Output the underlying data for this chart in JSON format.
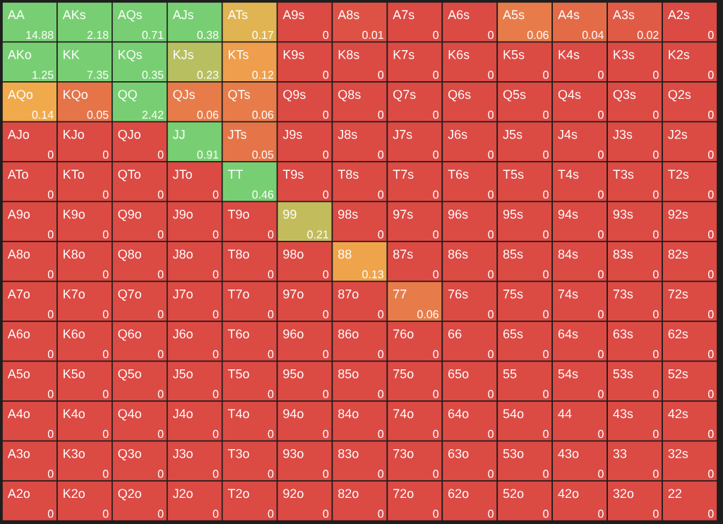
{
  "chart_data": {
    "type": "heatmap",
    "categories": [
      null,
      null,
      null,
      null,
      null,
      null,
      null,
      null,
      null,
      null,
      null,
      null,
      null
    ],
    "y_categories": [
      null,
      null,
      null,
      null,
      null,
      null,
      null,
      null,
      null,
      null,
      null,
      null,
      null
    ],
    "cells": [
      [
        14.88,
        2.18,
        0.71,
        0.38,
        0.17,
        0,
        0.01,
        0,
        0,
        0.06,
        0.04,
        0.02,
        0
      ],
      [
        1.25,
        7.35,
        0.35,
        0.23,
        0.12,
        0,
        0,
        0,
        0,
        0,
        0,
        0,
        0
      ],
      [
        0.14,
        0.05,
        2.42,
        0.06,
        0.06,
        0,
        0,
        0,
        0,
        0,
        0,
        0,
        0
      ],
      [
        0,
        0,
        0,
        0.91,
        0.05,
        0,
        0,
        0,
        0,
        0,
        0,
        0,
        0
      ],
      [
        0,
        0,
        0,
        0,
        0.46,
        0,
        0,
        0,
        0,
        0,
        0,
        0,
        0
      ],
      [
        0,
        0,
        0,
        0,
        0,
        0.21,
        0,
        0,
        0,
        0,
        0,
        0,
        0
      ],
      [
        0,
        0,
        0,
        0,
        0,
        0,
        0.13,
        0,
        0,
        0,
        0,
        0,
        0
      ],
      [
        0,
        0,
        0,
        0,
        0,
        0,
        0,
        0.06,
        0,
        0,
        0,
        0,
        0
      ],
      [
        0,
        0,
        0,
        0,
        0,
        0,
        0,
        0,
        0,
        0,
        0,
        0,
        0
      ],
      [
        0,
        0,
        0,
        0,
        0,
        0,
        0,
        0,
        0,
        0,
        0,
        0,
        0
      ],
      [
        0,
        0,
        0,
        0,
        0,
        0,
        0,
        0,
        0,
        0,
        0,
        0,
        0
      ],
      [
        0,
        0,
        0,
        0,
        0,
        0,
        0,
        0,
        0,
        0,
        0,
        0,
        0
      ],
      [
        0,
        0,
        0,
        0,
        0,
        0,
        0,
        0,
        0,
        0,
        0,
        0,
        0
      ]
    ],
    "data_labels": true,
    "annotations": [
      "AA",
      "AKs",
      "AQs",
      "AJs",
      "ATs",
      "A9s",
      "A8s",
      "A7s",
      "A6s",
      "A5s",
      "A4s",
      "A3s",
      "A2s",
      "AKo",
      "KK",
      "KQs",
      "KJs",
      "KTs",
      "K9s",
      "K8s",
      "K7s",
      "K6s",
      "K5s",
      "K4s",
      "K3s",
      "K2s",
      "AQo",
      "KQo",
      "QQ",
      "QJs",
      "QTs",
      "Q9s",
      "Q8s",
      "Q7s",
      "Q6s",
      "Q5s",
      "Q4s",
      "Q3s",
      "Q2s",
      "AJo",
      "KJo",
      "QJo",
      "JJ",
      "JTs",
      "J9s",
      "J8s",
      "J7s",
      "J6s",
      "J5s",
      "J4s",
      "J3s",
      "J2s",
      "ATo",
      "KTo",
      "QTo",
      "JTo",
      "TT",
      "T9s",
      "T8s",
      "T7s",
      "T6s",
      "T5s",
      "T4s",
      "T3s",
      "T2s",
      "A9o",
      "K9o",
      "Q9o",
      "J9o",
      "T9o",
      "99",
      "98s",
      "97s",
      "96s",
      "95s",
      "94s",
      "93s",
      "92s",
      "A8o",
      "K8o",
      "Q8o",
      "J8o",
      "T8o",
      "98o",
      "88",
      "87s",
      "86s",
      "85s",
      "84s",
      "83s",
      "82s",
      "A7o",
      "K7o",
      "Q7o",
      "J7o",
      "T7o",
      "97o",
      "87o",
      "77",
      "76s",
      "75s",
      "74s",
      "73s",
      "72s",
      "A6o",
      "K6o",
      "Q6o",
      "J6o",
      "T6o",
      "96o",
      "86o",
      "76o",
      "66",
      "65s",
      "64s",
      "63s",
      "62s",
      "A5o",
      "K5o",
      "Q5o",
      "J5o",
      "T5o",
      "95o",
      "85o",
      "75o",
      "65o",
      "55",
      "54s",
      "53s",
      "52s",
      "A4o",
      "K4o",
      "Q4o",
      "J4o",
      "T4o",
      "94o",
      "84o",
      "74o",
      "64o",
      "54o",
      "44",
      "43s",
      "42s",
      "A3o",
      "K3o",
      "Q3o",
      "J3o",
      "T3o",
      "93o",
      "83o",
      "73o",
      "63o",
      "53o",
      "43o",
      "33",
      "32s",
      "A2o",
      "K2o",
      "Q2o",
      "J2o",
      "T2o",
      "92o",
      "82o",
      "72o",
      "62o",
      "52o",
      "42o",
      "32o",
      "22"
    ]
  }
}
